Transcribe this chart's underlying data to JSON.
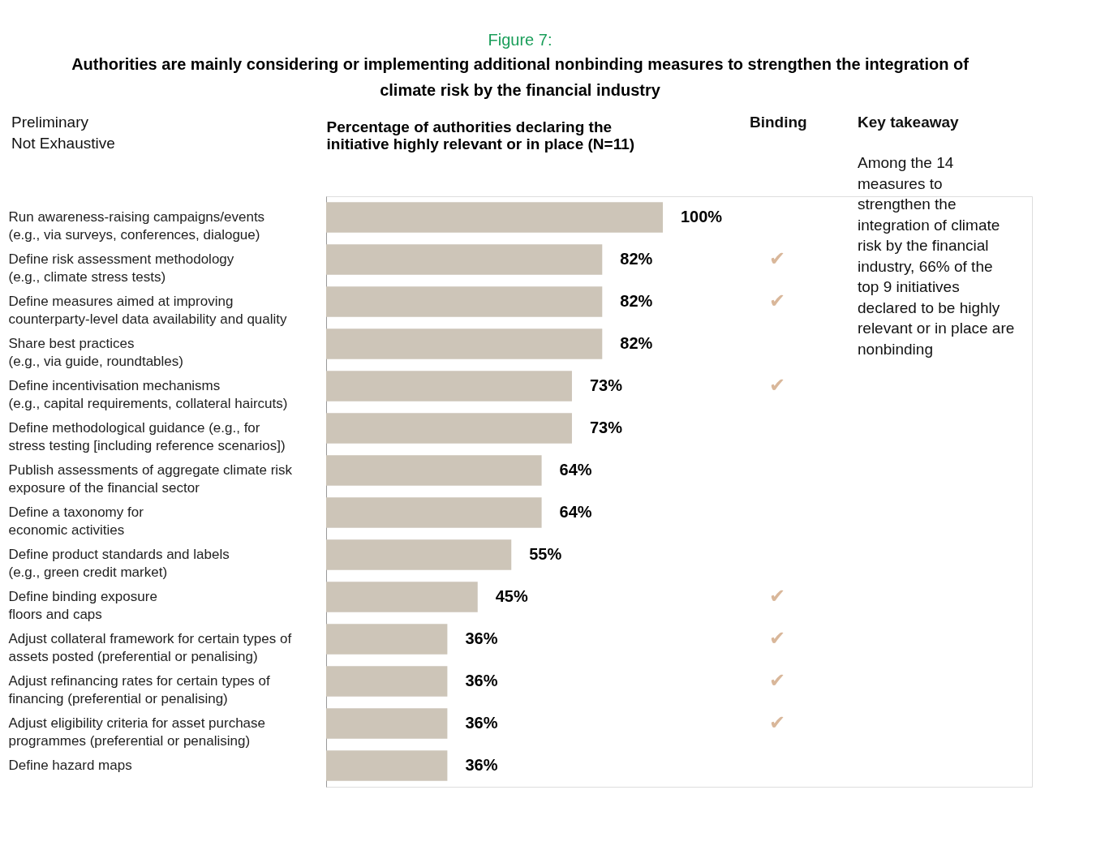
{
  "chart_data": {
    "type": "bar",
    "orientation": "horizontal",
    "title": "Figure 7:",
    "subtitle": "Authorities are mainly considering or implementing additional nonbinding measures to strengthen the integration of\nclimate risk by the financial industry",
    "xlabel": "Percentage of authorities declaring the\ninitiative highly relevant or in place (N=11)",
    "categories": [
      "Run awareness-raising campaigns/events\n(e.g., via surveys, conferences, dialogue)",
      "Define risk assessment methodology\n(e.g., climate stress tests)",
      "Define measures aimed at improving\ncounterparty-level data availability and quality",
      "Share best practices\n(e.g., via guide, roundtables)",
      "Define incentivisation mechanisms\n(e.g., capital requirements, collateral haircuts)",
      "Define methodological guidance (e.g., for\nstress testing [including reference scenarios])",
      "Publish assessments of aggregate climate risk\nexposure of the financial sector",
      "Define a taxonomy for\neconomic activities",
      "Define product standards and labels\n(e.g., green credit market)",
      "Define binding exposure\nfloors and caps",
      "Adjust collateral framework for certain types of\nassets posted (preferential or penalising)",
      "Adjust refinancing rates for certain types of\nfinancing (preferential or penalising)",
      "Adjust eligibility criteria for asset purchase\nprogrammes (preferential or penalising)",
      "Define hazard maps"
    ],
    "values": [
      100,
      82,
      82,
      82,
      73,
      73,
      64,
      64,
      55,
      45,
      36,
      36,
      36,
      36
    ],
    "value_labels": [
      "100%",
      "82%",
      "82%",
      "82%",
      "73%",
      "73%",
      "64%",
      "64%",
      "55%",
      "45%",
      "36%",
      "36%",
      "36%",
      "36%"
    ],
    "color": "#cdc5b8",
    "annotations": [
      "Preliminary\nNot Exhaustive",
      "Binding",
      "Key takeaway",
      "Among the 14\nmeasures to\nstrengthen the\nintegration of climate\nrisk by the financial\nindustry, 66% of the\ntop 9 initiatives\ndeclared to be highly\nrelevant or in place are\nnonbinding",
      "✔",
      "✔",
      "✔",
      "✔",
      "✔",
      "✔",
      "✔"
    ]
  }
}
